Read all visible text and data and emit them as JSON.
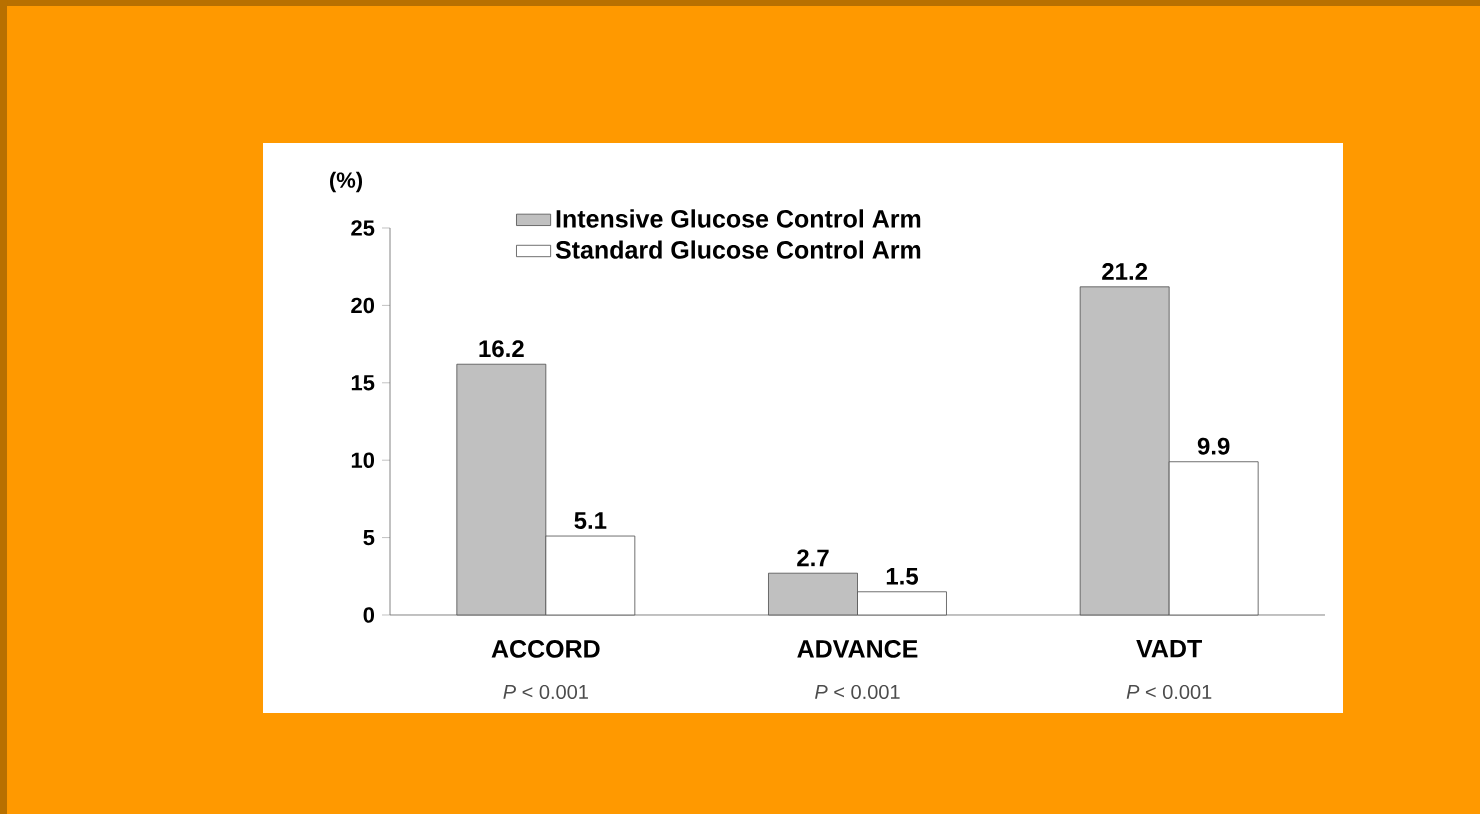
{
  "chart_data": {
    "type": "bar",
    "ylabel": "(%)",
    "categories": [
      "ACCORD",
      "ADVANCE",
      "VADT"
    ],
    "series": [
      {
        "name": "Intensive Glucose Control Arm",
        "color": "#c0c0c0",
        "values": [
          16.2,
          2.7,
          21.2
        ]
      },
      {
        "name": "Standard Glucose Control Arm",
        "color": "#ffffff",
        "values": [
          5.1,
          1.5,
          9.9
        ]
      }
    ],
    "ylim": [
      0,
      25
    ],
    "yticks": [
      0,
      5,
      10,
      15,
      20,
      25
    ],
    "data_labels": true,
    "legend": "top",
    "grid": false,
    "annotations": [
      "*P* < 0.001",
      "*P* < 0.001",
      "*P* < 0.001"
    ]
  }
}
